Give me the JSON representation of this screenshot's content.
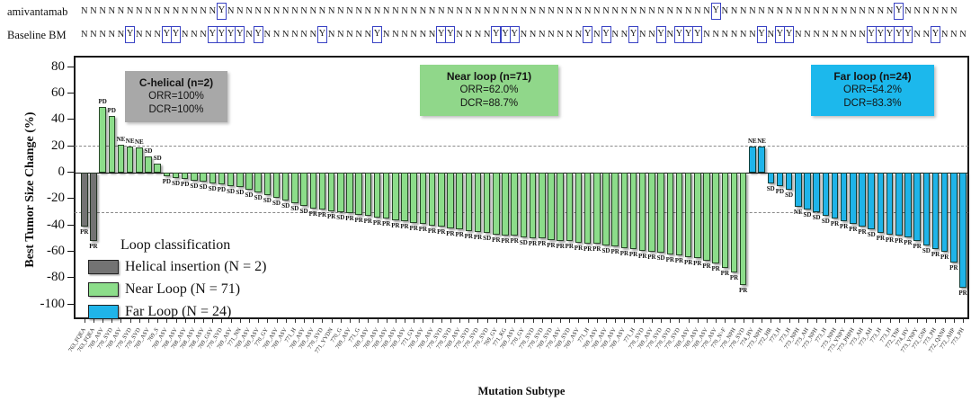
{
  "top_annotations": {
    "rows": [
      {
        "label": "amivantamab",
        "sequence": "NNNNNNNNNNNNNNNYNNNNNNNNNNNNNNNNNNNNNNNNNNNNNNNNNNNNNNNNNNNNNNNNNNNNNYNNNNNNNNNNNNNNNNNNNYNNNNNN"
      },
      {
        "label": "Baseline BM",
        "sequence": "NNNNNYNNNYYNNNYYYYNYNNNNNNYNNNNNYNNNNNNYYNNNNYYYNNNNNNNYNYNNYNNYNYYYNNNNNNYNYYNNNNNNNNYYYYYNNYNNN"
      }
    ],
    "yes_box_color": "#3a43c4"
  },
  "chart_data": {
    "type": "bar",
    "title": "",
    "xlabel": "Mutation Subtype",
    "ylabel": "Best Tumor Size Change (%)",
    "ylim": [
      -100,
      80
    ],
    "yticks": [
      80,
      60,
      40,
      20,
      0,
      -20,
      -40,
      -60,
      -80,
      -100
    ],
    "reference_lines": [
      20,
      -30
    ],
    "grid": false,
    "legend_position": "lower left",
    "series": [
      {
        "name": "Helical insertion",
        "n": 2,
        "color": "#737373",
        "categories": [
          "763_FQEA",
          "763_FQEA"
        ],
        "values": [
          -41,
          -52
        ],
        "responses": [
          "PR",
          "PR"
        ]
      },
      {
        "name": "Near Loop",
        "n": 71,
        "color": "#8cdd8a",
        "categories": [
          "769_ASV",
          "770_SVD",
          "769_ASV",
          "770_SVD",
          "770_SVD",
          "769_ASV",
          "769_S",
          "769_ASV",
          "768_ASV",
          "768_ASV",
          "768_ASV",
          "768_ASV",
          "769_GSV",
          "770_SVD",
          "769_ASV",
          "771_NN",
          "769_ASV",
          "769_ASV",
          "770_GY",
          "769_ASV",
          "769_ASV",
          "771_H",
          "769_ASV",
          "769_ASV",
          "770_SVD",
          "771_YVDN",
          "770_G",
          "769_ASV",
          "771_G",
          "769_ASV",
          "769_ASV",
          "769_ASV",
          "769_ASV",
          "769_ASV",
          "771_GY",
          "769_ASV",
          "769_ASV",
          "770_SVD",
          "770_SVD",
          "769_ASV",
          "770_SVD",
          "770_SVD",
          "770_SVD",
          "769_GY",
          "771_KG",
          "769_ASV",
          "770_GY",
          "770_SVD",
          "770_SVD",
          "769_SVD",
          "770_ASV",
          "769_SVD",
          "769_ASV",
          "771_H",
          "769_ASV",
          "769_ASV",
          "769_ASV",
          "769_ASV",
          "771_H",
          "770_SVD",
          "769_ASV",
          "770_SVD",
          "770_SVD",
          "770_SVD",
          "769_ASV",
          "769_ASV",
          "769_ASV",
          "770_ASV",
          "770_N>F",
          "770_NPH",
          "770_SVD"
        ],
        "values": [
          50,
          43,
          21,
          20,
          19,
          12,
          7,
          -3,
          -4,
          -5,
          -6,
          -7,
          -8,
          -9,
          -10,
          -11,
          -13,
          -15,
          -17,
          -19,
          -21,
          -23,
          -25,
          -27,
          -28,
          -29,
          -30,
          -31,
          -32,
          -33,
          -34,
          -35,
          -36,
          -37,
          -38,
          -39,
          -40,
          -41,
          -42,
          -43,
          -44,
          -45,
          -46,
          -47,
          -48,
          -48,
          -49,
          -50,
          -50,
          -51,
          -52,
          -52,
          -53,
          -54,
          -54,
          -55,
          -56,
          -57,
          -58,
          -59,
          -60,
          -61,
          -62,
          -63,
          -64,
          -65,
          -67,
          -69,
          -72,
          -76,
          -85
        ],
        "responses": [
          "PD",
          "PD",
          "NE",
          "NE",
          "NE",
          "SD",
          "SD",
          "PD",
          "SD",
          "PD",
          "SD",
          "SD",
          "SD",
          "PD",
          "SD",
          "SD",
          "SD",
          "SD",
          "SD",
          "SD",
          "SD",
          "SD",
          "SD",
          "PR",
          "PR",
          "PR",
          "SD",
          "PR",
          "PR",
          "PR",
          "PR",
          "PR",
          "PR",
          "PR",
          "PR",
          "PR",
          "PR",
          "PR",
          "PR",
          "PR",
          "PR",
          "PR",
          "SD",
          "PR",
          "PR",
          "PR",
          "SD",
          "PR",
          "PR",
          "PR",
          "PR",
          "PR",
          "PR",
          "PR",
          "PR",
          "SD",
          "PR",
          "PR",
          "PR",
          "PR",
          "PR",
          "SD",
          "PR",
          "PR",
          "PR",
          "PR",
          "PR",
          "PR",
          "PR",
          "PR",
          "PR"
        ]
      },
      {
        "name": "Far Loop",
        "n": 24,
        "color": "#1fb4e9",
        "categories": [
          "774_HV",
          "773_NPH",
          "772_HR",
          "773_H",
          "773_H",
          "773_NPH",
          "773_AH",
          "773_NPH",
          "773_H",
          "773_NPH",
          "773_YNPY",
          "773_PHPH",
          "773_AH",
          "773_AH",
          "773_H",
          "773_H",
          "772_TNP",
          "774_HV",
          "773_YNPY",
          "772_GNP",
          "773_PH",
          "772_QANP",
          "772_AHP",
          "773_PH"
        ],
        "values": [
          20,
          20,
          -8,
          -10,
          -13,
          -26,
          -28,
          -30,
          -33,
          -35,
          -37,
          -39,
          -41,
          -43,
          -46,
          -47,
          -48,
          -49,
          -52,
          -55,
          -58,
          -60,
          -68,
          -87
        ],
        "responses": [
          "NE",
          "NE",
          "SD",
          "PD",
          "SD",
          "NE",
          "SD",
          "SD",
          "SD",
          "PR",
          "PR",
          "PR",
          "PR",
          "SD",
          "PR",
          "PR",
          "PR",
          "PR",
          "PR",
          "SD",
          "PR",
          "PR",
          "PR",
          "PR"
        ]
      }
    ]
  },
  "legend": {
    "title": "Loop classification",
    "items": [
      {
        "label": "Helical insertion (N = 2)",
        "color": "#737373"
      },
      {
        "label": "Near Loop (N = 71)",
        "color": "#8cdd8a"
      },
      {
        "label": "Far Loop (N = 24)",
        "color": "#1fb4e9"
      }
    ]
  },
  "boxes": [
    {
      "title": "C-helical (n=2)",
      "line1": "ORR=100%",
      "line2": "DCR=100%",
      "bg": "#a8a8a8"
    },
    {
      "title": "Near loop (n=71)",
      "line1": "ORR=62.0%",
      "line2": "DCR=88.7%",
      "bg": "#90d78a"
    },
    {
      "title": "Far loop (n=24)",
      "line1": "ORR=54.2%",
      "line2": "DCR=83.3%",
      "bg": "#1cb8ec"
    }
  ]
}
